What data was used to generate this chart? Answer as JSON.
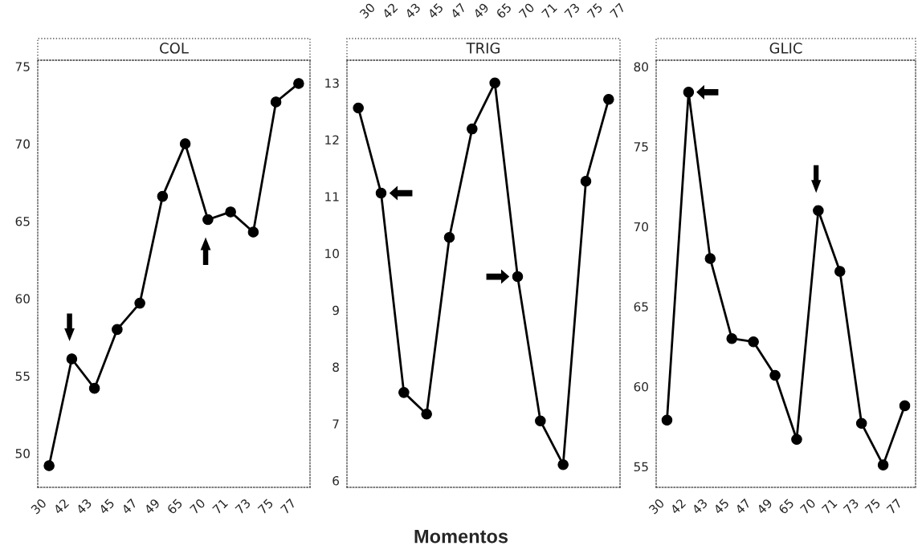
{
  "chart_data": [
    {
      "type": "line",
      "title": "COL",
      "categories": [
        "30",
        "42",
        "43",
        "45",
        "47",
        "49",
        "65",
        "70",
        "71",
        "73",
        "75",
        "77"
      ],
      "series": [
        {
          "color": "#000000",
          "values": [
            49.2,
            56.1,
            54.2,
            58.0,
            59.7,
            66.6,
            70.0,
            65.1,
            65.6,
            64.3,
            72.7,
            73.9
          ]
        }
      ],
      "ylim": [
        47.8,
        75.4
      ],
      "yticks": [
        50,
        55,
        60,
        65,
        70,
        75
      ],
      "marker": "circle",
      "line_style": "solid",
      "grid": false
    },
    {
      "type": "line",
      "title": "TRIG",
      "xlabel": "Momentos",
      "categories": [
        "30",
        "42",
        "43",
        "45",
        "47",
        "49",
        "65",
        "70",
        "71",
        "73",
        "75",
        "77"
      ],
      "series": [
        {
          "color": "#000000",
          "values": [
            12.56,
            11.06,
            7.55,
            7.17,
            10.28,
            12.19,
            13.0,
            9.59,
            7.05,
            6.28,
            11.27,
            12.71
          ]
        }
      ],
      "ylim": [
        5.88,
        13.4
      ],
      "yticks": [
        6,
        7,
        8,
        9,
        10,
        11,
        12,
        13
      ],
      "marker": "circle",
      "line_style": "solid",
      "grid": false
    },
    {
      "type": "line",
      "title": "GLIC",
      "categories": [
        "30",
        "42",
        "43",
        "45",
        "47",
        "49",
        "65",
        "70",
        "71",
        "73",
        "75",
        "77"
      ],
      "series": [
        {
          "color": "#000000",
          "values": [
            57.9,
            78.4,
            68.0,
            63.0,
            62.8,
            60.7,
            56.7,
            71.0,
            67.2,
            57.7,
            55.1,
            58.8
          ]
        }
      ],
      "ylim": [
        53.7,
        80.4
      ],
      "yticks": [
        55,
        60,
        65,
        70,
        75,
        80
      ],
      "marker": "circle",
      "line_style": "solid",
      "grid": false
    }
  ]
}
